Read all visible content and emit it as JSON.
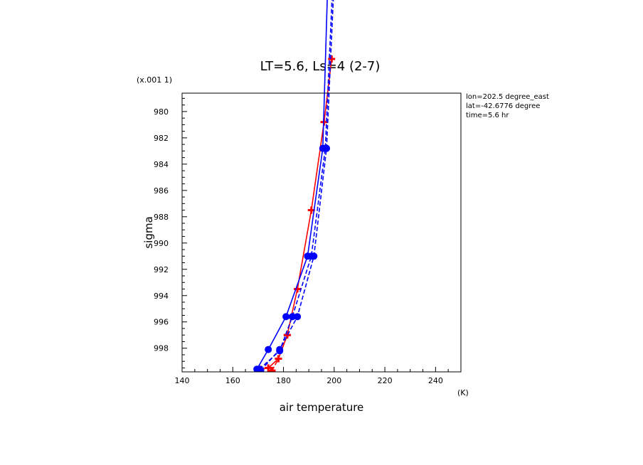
{
  "chart_data": {
    "type": "line",
    "title": "LT=5.6, Ls=4 (2-7)",
    "xlabel": "air temperature",
    "xunits": "(K)",
    "ylabel": "sigma",
    "yscale_label": "(x.001 1)",
    "xlim": [
      140,
      250
    ],
    "ylim": [
      999.8,
      978.6
    ],
    "y_inverted": true,
    "xticks": [
      140,
      160,
      180,
      200,
      220,
      240
    ],
    "yticks": [
      980,
      982,
      984,
      986,
      988,
      990,
      992,
      994,
      996,
      998
    ],
    "grid": false,
    "annotations": [
      "lon=202.5 degree_east",
      "lat=-42.6776 degree",
      "time=5.6 hr"
    ],
    "series": [
      {
        "color": "#ff0000",
        "line": "solid",
        "marker": "plus",
        "points": [
          [
            171.0,
            999.6
          ],
          [
            174.0,
            999.5
          ],
          [
            178.0,
            998.8
          ],
          [
            181.5,
            997.0
          ],
          [
            185.5,
            993.5
          ],
          [
            191.0,
            987.5
          ],
          [
            196.0,
            980.8
          ],
          [
            199.0,
            976.0
          ]
        ]
      },
      {
        "color": "#ff0000",
        "line": "dashed",
        "marker": "plus",
        "points": [
          [
            175.5,
            999.7
          ],
          [
            178.0,
            998.8
          ],
          [
            181.5,
            997.0
          ]
        ]
      },
      {
        "color": "#0000ff",
        "line": "solid",
        "marker": "circle",
        "points": [
          [
            169.5,
            999.6
          ],
          [
            174.0,
            998.1
          ],
          [
            181.0,
            995.6
          ],
          [
            189.5,
            991.0
          ],
          [
            195.5,
            982.8
          ],
          [
            197.5,
            970.0
          ]
        ]
      },
      {
        "color": "#0000ff",
        "line": "dashed",
        "marker": "circle",
        "points": [
          [
            170.5,
            999.6
          ],
          [
            178.5,
            998.2
          ],
          [
            183.5,
            995.6
          ],
          [
            191.0,
            991.0
          ],
          [
            196.5,
            982.8
          ],
          [
            199.5,
            970.0
          ]
        ]
      },
      {
        "color": "#0000ff",
        "line": "dashed",
        "marker": "circle",
        "points": [
          [
            171.0,
            999.7
          ],
          [
            178.5,
            998.1
          ],
          [
            185.5,
            995.6
          ],
          [
            192.0,
            991.0
          ],
          [
            197.0,
            982.8
          ],
          [
            200.0,
            970.0
          ]
        ]
      }
    ]
  }
}
